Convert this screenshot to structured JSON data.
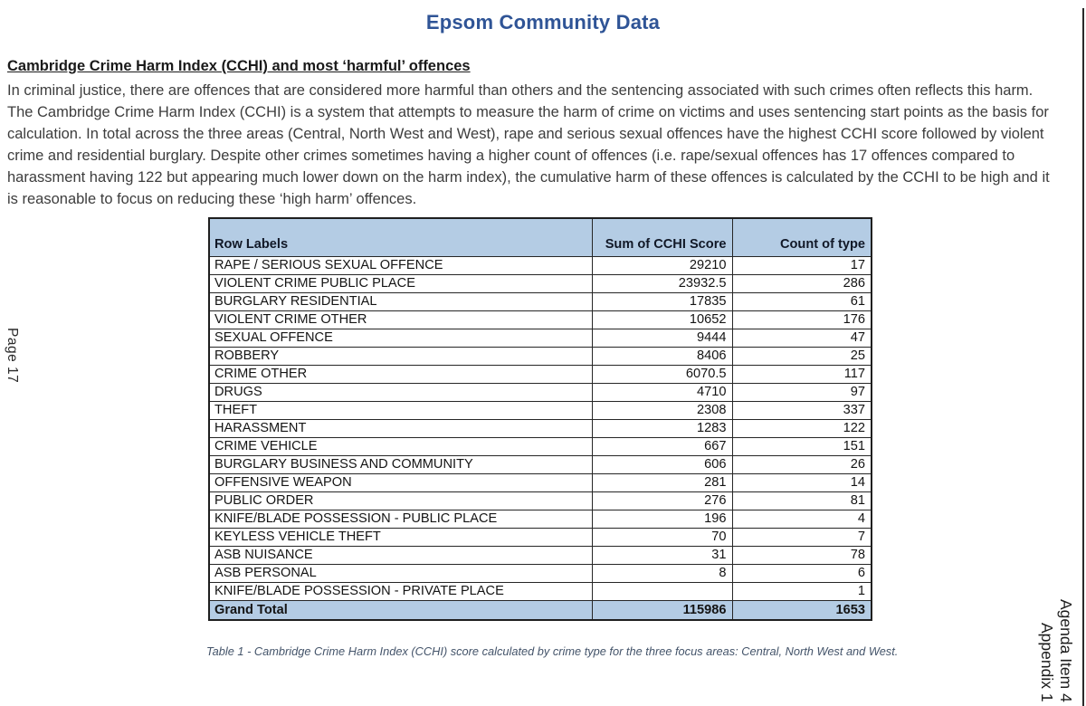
{
  "page": {
    "title": "Epsom Community Data",
    "left_margin_label": "Page 17",
    "right_margin": {
      "lines": [
        "Agenda Item 4",
        "Appendix 1"
      ]
    }
  },
  "section": {
    "heading": "Cambridge Crime Harm Index (CCHI) and most ‘harmful’ offences",
    "paragraph": "In criminal justice, there are offences that are considered more harmful than others and the sentencing associated with such crimes often reflects this harm. The Cambridge Crime Harm Index (CCHI) is a system that attempts to measure the harm of crime on victims and uses sentencing start points as the basis for calculation. In total across the three areas (Central, North West and West), rape and serious sexual offences have the highest CCHI score followed by violent crime and residential burglary. Despite other crimes sometimes having a higher count of offences (i.e. rape/sexual offences has 17 offences compared to harassment having 122 but appearing much lower down on the harm index), the cumulative harm of these offences is calculated by the CCHI to be high and it is reasonable to focus on reducing these ‘high harm’ offences."
  },
  "table": {
    "columns": [
      "Row Labels",
      "Sum of CCHI Score",
      "Count of type"
    ],
    "rows": [
      {
        "label": "RAPE / SERIOUS SEXUAL OFFENCE",
        "score": "29210",
        "count": "17"
      },
      {
        "label": "VIOLENT CRIME PUBLIC PLACE",
        "score": "23932.5",
        "count": "286"
      },
      {
        "label": "BURGLARY RESIDENTIAL",
        "score": "17835",
        "count": "61"
      },
      {
        "label": "VIOLENT CRIME OTHER",
        "score": "10652",
        "count": "176"
      },
      {
        "label": "SEXUAL OFFENCE",
        "score": "9444",
        "count": "47"
      },
      {
        "label": "ROBBERY",
        "score": "8406",
        "count": "25"
      },
      {
        "label": "CRIME OTHER",
        "score": "6070.5",
        "count": "117"
      },
      {
        "label": "DRUGS",
        "score": "4710",
        "count": "97"
      },
      {
        "label": "THEFT",
        "score": "2308",
        "count": "337"
      },
      {
        "label": "HARASSMENT",
        "score": "1283",
        "count": "122"
      },
      {
        "label": "CRIME VEHICLE",
        "score": "667",
        "count": "151"
      },
      {
        "label": "BURGLARY BUSINESS AND COMMUNITY",
        "score": "606",
        "count": "26"
      },
      {
        "label": "OFFENSIVE WEAPON",
        "score": "281",
        "count": "14"
      },
      {
        "label": "PUBLIC ORDER",
        "score": "276",
        "count": "81"
      },
      {
        "label": "KNIFE/BLADE POSSESSION - PUBLIC PLACE",
        "score": "196",
        "count": "4"
      },
      {
        "label": "KEYLESS VEHICLE THEFT",
        "score": "70",
        "count": "7"
      },
      {
        "label": "ASB NUISANCE",
        "score": "31",
        "count": "78"
      },
      {
        "label": "ASB PERSONAL",
        "score": "8",
        "count": "6"
      },
      {
        "label": "KNIFE/BLADE POSSESSION - PRIVATE PLACE",
        "score": "",
        "count": "1"
      }
    ],
    "grand_total": {
      "label": "Grand Total",
      "score": "115986",
      "count": "1653"
    },
    "caption": "Table 1 - Cambridge Crime Harm Index (CCHI) score calculated by crime type for the three focus areas: Central, North West and West."
  },
  "colors": {
    "title_blue": "#2F5496",
    "table_header_fill": "#B4CCE4",
    "caption_slate": "#44546A",
    "body_text": "#3D3D3D"
  }
}
